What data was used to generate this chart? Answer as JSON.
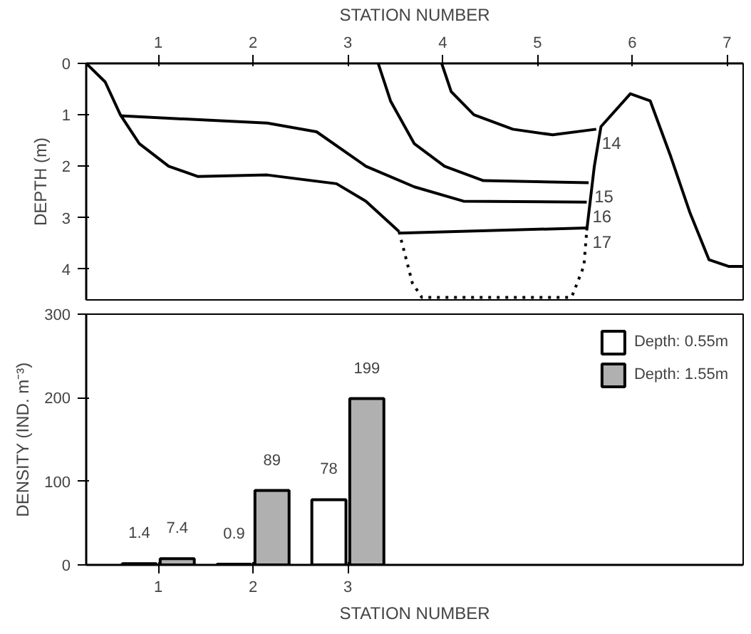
{
  "chart_data": [
    {
      "type": "line",
      "xlabel": "STATION NUMBER",
      "ylabel": "DEPTH (m)",
      "xlim": [
        0.24,
        7.17
      ],
      "ylim": [
        4.6,
        0
      ],
      "xticks": [
        1,
        2,
        3,
        4,
        5,
        6,
        7
      ],
      "yticks": [
        0,
        1,
        2,
        3,
        4
      ],
      "grid": false,
      "series": [
        {
          "color": "#000000",
          "x": [
            0.24,
            0.44,
            0.6,
            0.8,
            1.11,
            1.42,
            2.15,
            2.88,
            3.19,
            3.54
          ],
          "values": [
            0,
            0.36,
            1.0,
            1.56,
            2.0,
            2.2,
            2.17,
            2.34,
            2.68,
            3.27
          ]
        },
        {
          "color": "#000000",
          "line_style": "dotted",
          "x": [
            3.54,
            3.68,
            3.78,
            5.36,
            5.49,
            5.52
          ],
          "values": [
            3.27,
            4.27,
            4.55,
            4.55,
            3.94,
            3.25
          ]
        },
        {
          "color": "#000000",
          "x": [
            5.52,
            5.6,
            5.67,
            5.98,
            6.19,
            6.4,
            6.61,
            6.81,
            7.02,
            7.17
          ],
          "values": [
            3.25,
            2.0,
            1.23,
            0.59,
            0.73,
            1.78,
            2.91,
            3.82,
            3.95,
            3.95
          ]
        },
        {
          "color": "#000000",
          "x": [
            3.99,
            4.09,
            4.33,
            4.74,
            5.16,
            5.62
          ],
          "values": [
            0,
            0.55,
            1.0,
            1.28,
            1.39,
            1.28
          ]
        },
        {
          "color": "#000000",
          "x": [
            3.32,
            3.45,
            3.7,
            4.02,
            4.43,
            5.54
          ],
          "values": [
            0,
            0.73,
            1.56,
            2.0,
            2.28,
            2.32
          ]
        },
        {
          "color": "#000000",
          "x": [
            0.6,
            2.15,
            2.67,
            3.19,
            3.7,
            4.22,
            5.52
          ],
          "values": [
            1.02,
            1.16,
            1.33,
            2.0,
            2.4,
            2.68,
            2.7
          ]
        },
        {
          "color": "#000000",
          "x": [
            3.54,
            5.52
          ],
          "values": [
            3.3,
            3.2
          ]
        }
      ],
      "annotations": [
        {
          "text": "14",
          "x": 5.62,
          "y": 1.28
        },
        {
          "text": "15",
          "x": 5.54,
          "y": 2.32
        },
        {
          "text": "16",
          "x": 5.52,
          "y": 2.7
        },
        {
          "text": "17",
          "x": 5.52,
          "y": 3.2
        }
      ]
    },
    {
      "type": "bar",
      "xlabel": "STATION NUMBER",
      "ylabel": "DENSITY (IND. m⁻³)",
      "categories": [
        "1",
        "2",
        "3"
      ],
      "ylim": [
        0,
        300
      ],
      "yticks": [
        0,
        100,
        200,
        300
      ],
      "grid": false,
      "legend": "top right",
      "series": [
        {
          "name": "Depth: 0.55m",
          "color": "#ffffff",
          "values": [
            1.4,
            0.9,
            78
          ]
        },
        {
          "name": "Depth: 1.55m",
          "color": "#b0b0b0",
          "values": [
            7.4,
            89,
            199
          ]
        }
      ],
      "data_labels": true
    }
  ]
}
